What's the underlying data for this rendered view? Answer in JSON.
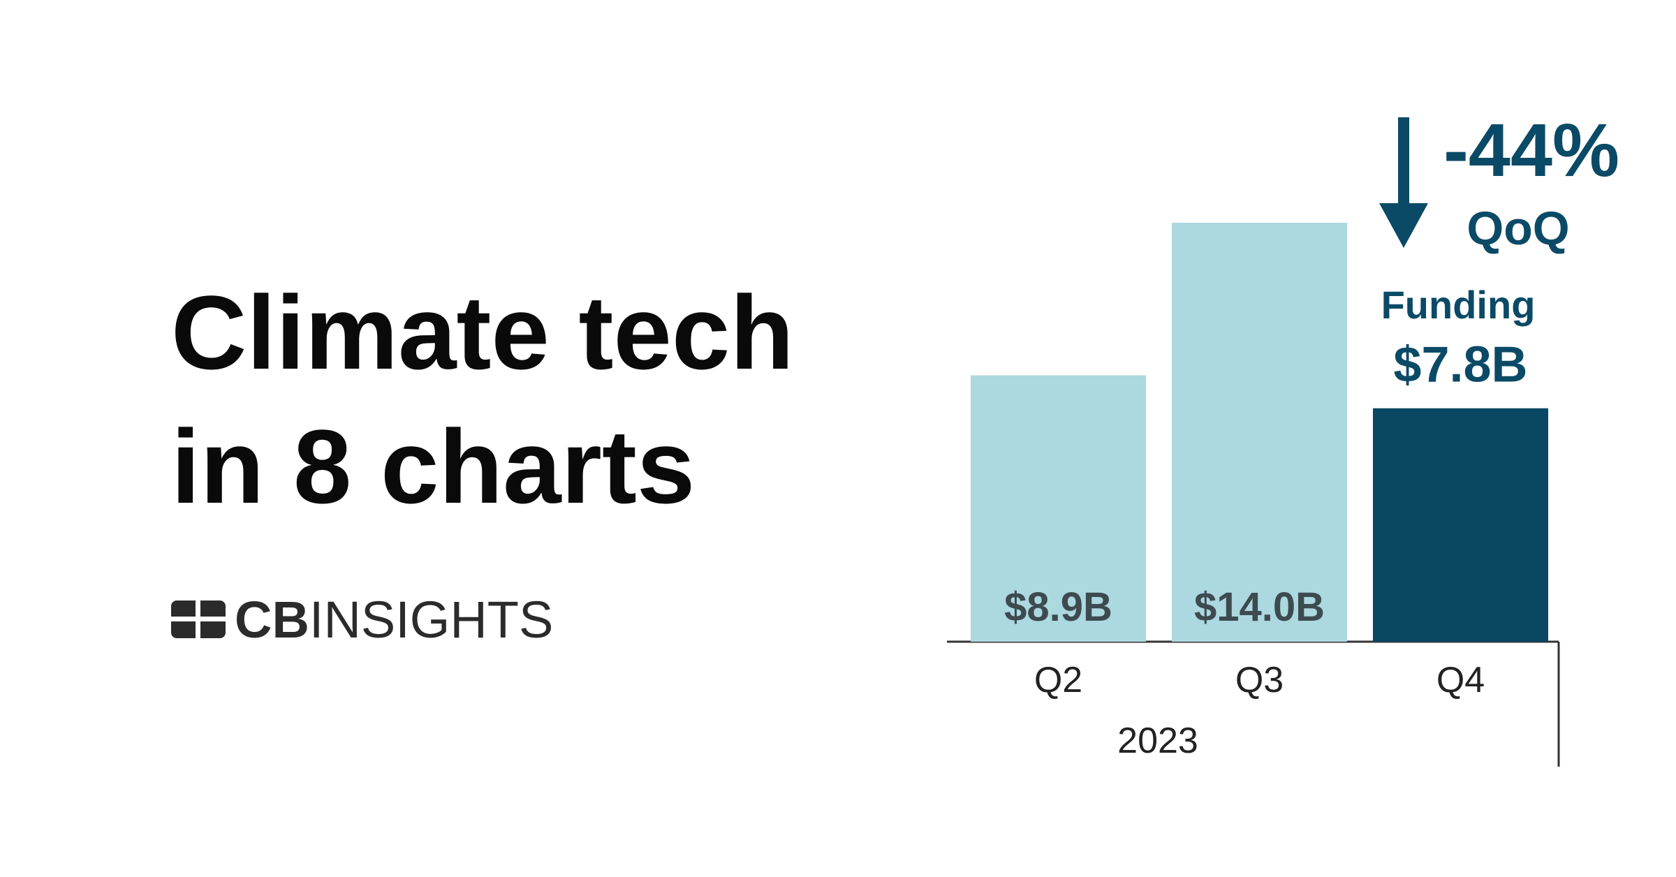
{
  "header": {
    "title_lines": [
      "Climate tech",
      "in 8 charts"
    ]
  },
  "logo": {
    "bold": "CB",
    "light": "INSIGHTS"
  },
  "chart_data": {
    "type": "bar",
    "categories": [
      "Q2",
      "Q3",
      "Q4"
    ],
    "group_label": "2023",
    "values": [
      8.9,
      14.0,
      7.8
    ],
    "value_labels": [
      "$8.9B",
      "$14.0B",
      "$7.8B"
    ],
    "colors": [
      "#acd8e0",
      "#acd8e0",
      "#0a4763"
    ],
    "annotations": {
      "change": "-44%",
      "period": "QoQ",
      "metric": "Funding"
    }
  }
}
